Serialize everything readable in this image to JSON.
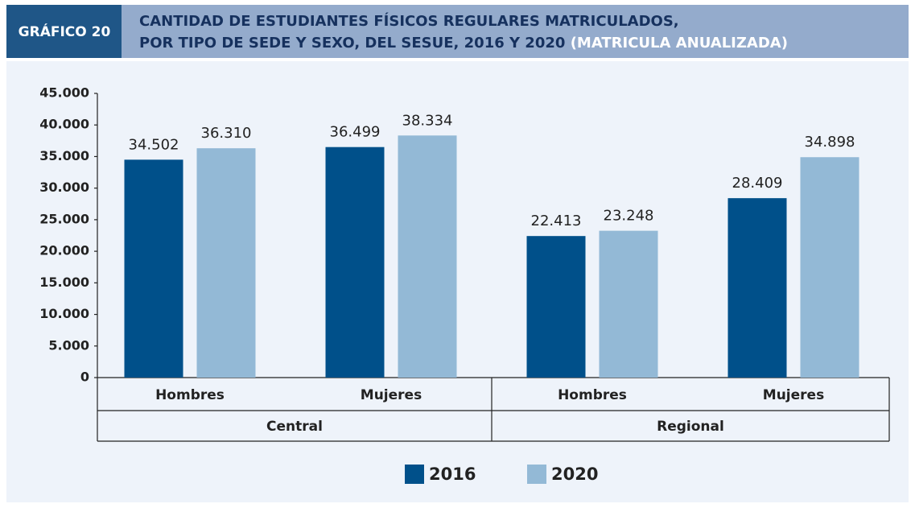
{
  "chart_data": {
    "type": "bar",
    "label": "GRÁFICO 20",
    "title_lines": [
      "CANTIDAD DE ESTUDIANTES FÍSICOS REGULARES MATRICULADOS,",
      "POR TIPO DE SEDE Y SEXO, DEL SESUE, 2016 Y 2020"
    ],
    "title_note": "(MATRICULA ANUALIZADA)",
    "categories": [
      "Hombres",
      "Mujeres",
      "Hombres",
      "Mujeres"
    ],
    "groups": [
      "Central",
      "Regional"
    ],
    "series": [
      {
        "name": "2016",
        "color": "#00508a",
        "values": [
          34502,
          36499,
          22413,
          28409
        ],
        "value_labels": [
          "34.502",
          "36.499",
          "22.413",
          "28.409"
        ]
      },
      {
        "name": "2020",
        "color": "#93b9d6",
        "values": [
          36310,
          38334,
          23248,
          34898
        ],
        "value_labels": [
          "36.310",
          "38.334",
          "23.248",
          "34.898"
        ]
      }
    ],
    "ylim": [
      0,
      45000
    ],
    "yticks": [
      0,
      {
        "value": 5000,
        "label": "5.000"
      },
      {
        "value": 10000,
        "label": "10.000"
      },
      {
        "value": 15000,
        "label": "15.000"
      },
      {
        "value": 20000,
        "label": "20.000"
      },
      {
        "value": 25000,
        "label": "25.000"
      },
      {
        "value": 30000,
        "label": "30.000"
      },
      {
        "value": 35000,
        "label": "35.000"
      },
      {
        "value": 40000,
        "label": "40.000"
      },
      {
        "value": 45000,
        "label": "45.000"
      }
    ],
    "grid": false,
    "legend": "bottom"
  }
}
